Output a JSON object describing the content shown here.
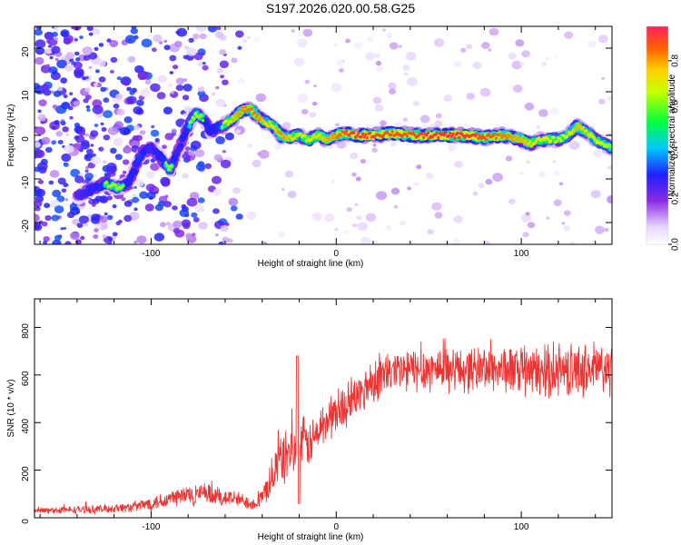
{
  "title": "S197.2026.020.00.58.G25",
  "colors": {
    "snr_line": "#ee3333",
    "axis": "#000000"
  },
  "chart_data": [
    {
      "type": "heatmap",
      "title": "",
      "xlabel": "Height of straight line (km)",
      "ylabel": "Frequency (Hz)",
      "xlim": [
        -163,
        149
      ],
      "ylim": [
        -25,
        25
      ],
      "xticks": [
        -100,
        0,
        100
      ],
      "xtick_labels": [
        "-100",
        "0",
        "100"
      ],
      "yticks": [
        -20,
        -10,
        0,
        10,
        20
      ],
      "ytick_labels": [
        "-20",
        "-10",
        "0",
        "10",
        "20"
      ],
      "colorbar": {
        "label": "Normalized spectral amplitude",
        "range": [
          0,
          0.95
        ],
        "ticks": [
          0.0,
          0.2,
          0.4,
          0.6,
          0.8
        ],
        "tick_labels": [
          "0.0",
          "0.2",
          "0.4",
          "0.6",
          "0.8"
        ]
      },
      "ridge": {
        "x": [
          -140,
          -130,
          -125,
          -118,
          -112,
          -105,
          -100,
          -95,
          -90,
          -85,
          -80,
          -76,
          -72,
          -68,
          -62,
          -55,
          -50,
          -46,
          -42,
          -38,
          -34,
          -30,
          -25,
          -20,
          -15,
          -10,
          -5,
          0,
          5,
          10,
          20,
          30,
          40,
          50,
          60,
          70,
          80,
          90,
          100,
          105,
          110,
          115,
          120,
          125,
          130,
          135,
          140,
          145,
          149
        ],
        "y": [
          -14,
          -12,
          -11,
          -12,
          -11,
          -4,
          -3,
          -5,
          -8,
          -3,
          2,
          5,
          4,
          1,
          2,
          4,
          6,
          6,
          4,
          3,
          2,
          0,
          -0.5,
          0,
          -1,
          0,
          -1,
          0,
          0.5,
          0,
          0,
          0.5,
          0,
          0,
          0,
          0,
          -0.5,
          0,
          -1,
          -2,
          -1,
          -1,
          -1,
          0,
          2,
          1,
          -1,
          -2,
          -3
        ],
        "strength": [
          0.45,
          0.55,
          0.6,
          0.65,
          0.55,
          0.6,
          0.5,
          0.55,
          0.65,
          0.5,
          0.6,
          0.65,
          0.6,
          0.55,
          0.6,
          0.8,
          0.85,
          0.85,
          0.85,
          0.75,
          0.75,
          0.85,
          0.75,
          0.7,
          0.7,
          0.75,
          0.8,
          0.85,
          0.9,
          0.95,
          0.92,
          0.9,
          0.9,
          0.95,
          0.95,
          0.95,
          0.9,
          0.85,
          0.8,
          0.75,
          0.7,
          0.7,
          0.65,
          0.7,
          0.8,
          0.75,
          0.7,
          0.65,
          0.6
        ]
      }
    },
    {
      "type": "line",
      "title": "",
      "xlabel": "Height of straight line (km)",
      "ylabel": "SNR (10 * v/v)",
      "xlim": [
        -163,
        149
      ],
      "ylim": [
        0,
        920
      ],
      "xticks": [
        -100,
        0,
        100
      ],
      "xtick_labels": [
        "-100",
        "0",
        "100"
      ],
      "yticks": [
        0,
        200,
        400,
        600,
        800
      ],
      "ytick_labels": [
        "0",
        "200",
        "400",
        "600",
        "800"
      ],
      "series": [
        {
          "name": "SNR",
          "envelope_x": [
            -163,
            -130,
            -110,
            -95,
            -85,
            -75,
            -65,
            -55,
            -45,
            -40,
            -36,
            -33,
            -30,
            -27,
            -25,
            -22,
            -20,
            -18,
            -15,
            -12,
            -8,
            -4,
            0,
            5,
            10,
            15,
            20,
            25,
            30,
            40,
            50,
            60,
            70,
            80,
            90,
            100,
            110,
            120,
            130,
            140,
            149
          ],
          "envelope_mean": [
            30,
            35,
            45,
            70,
            90,
            100,
            90,
            80,
            60,
            80,
            150,
            200,
            250,
            250,
            300,
            250,
            280,
            320,
            310,
            330,
            380,
            420,
            440,
            470,
            500,
            540,
            580,
            600,
            610,
            620,
            625,
            630,
            620,
            630,
            625,
            615,
            610,
            620,
            620,
            625,
            620
          ],
          "envelope_spread": [
            15,
            20,
            25,
            40,
            50,
            55,
            50,
            40,
            30,
            50,
            80,
            100,
            120,
            130,
            130,
            120,
            120,
            120,
            110,
            110,
            110,
            110,
            110,
            100,
            100,
            110,
            110,
            110,
            110,
            110,
            110,
            110,
            110,
            110,
            115,
            120,
            120,
            125,
            125,
            130,
            130
          ]
        }
      ]
    }
  ]
}
